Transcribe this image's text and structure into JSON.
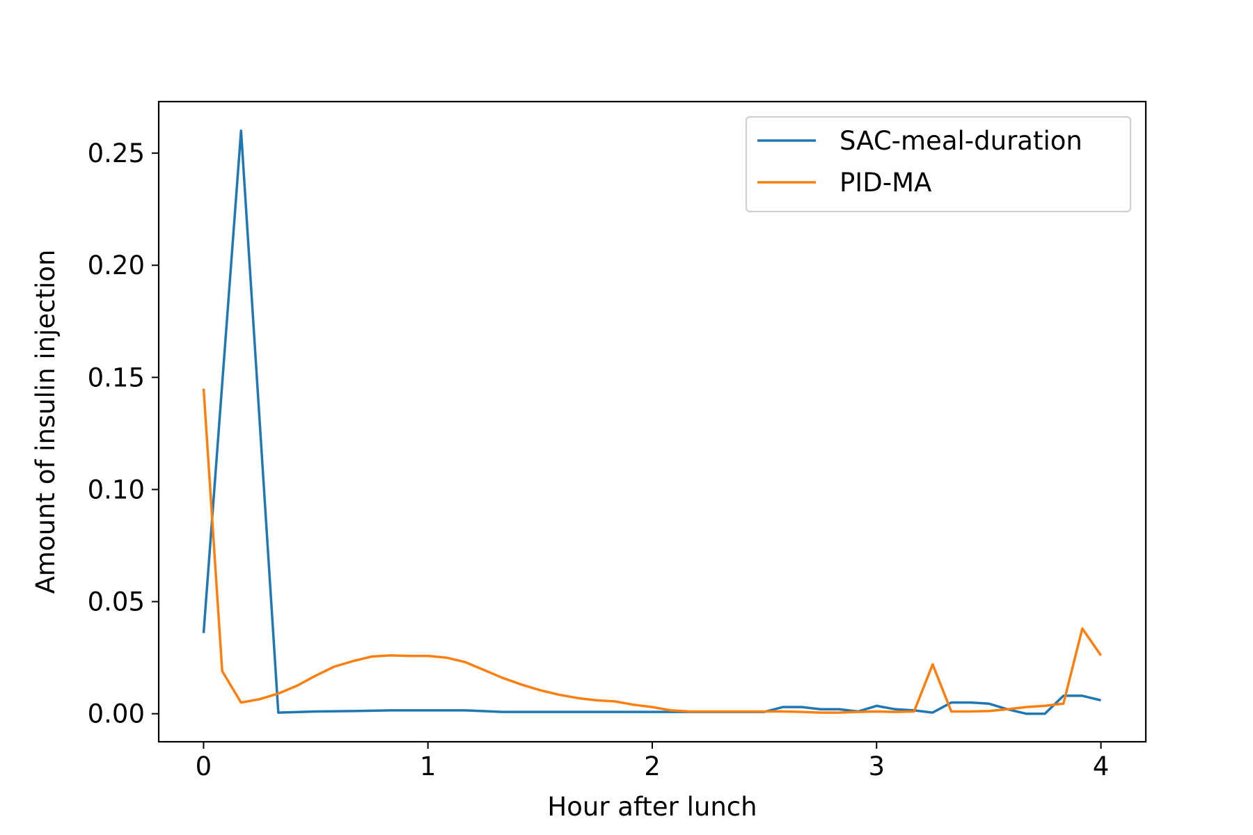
{
  "chart_data": {
    "type": "line",
    "title": "",
    "xlabel": "Hour after lunch",
    "ylabel": "Amount of insulin injection",
    "xlim": [
      -0.2,
      4.2
    ],
    "ylim": [
      -0.0125,
      0.273
    ],
    "xticks": [
      0,
      1,
      2,
      3,
      4
    ],
    "xtick_labels": [
      "0",
      "1",
      "2",
      "3",
      "4"
    ],
    "yticks": [
      0.0,
      0.05,
      0.1,
      0.15,
      0.2,
      0.25
    ],
    "ytick_labels": [
      "0.00",
      "0.05",
      "0.10",
      "0.15",
      "0.20",
      "0.25"
    ],
    "grid": false,
    "legend_position": "upper right",
    "series": [
      {
        "name": "SAC-meal-duration",
        "color": "#1f77b4",
        "x": [
          0,
          0.167,
          0.333,
          0.5,
          0.667,
          0.833,
          1.0,
          1.167,
          1.333,
          1.5,
          1.667,
          1.833,
          2.0,
          2.167,
          2.333,
          2.5,
          2.583,
          2.667,
          2.75,
          2.833,
          2.917,
          3.0,
          3.083,
          3.167,
          3.25,
          3.333,
          3.417,
          3.5,
          3.583,
          3.667,
          3.75,
          3.833,
          3.917,
          4.0
        ],
        "y": [
          0.036,
          0.26,
          0.0005,
          0.001,
          0.0012,
          0.0015,
          0.0015,
          0.0015,
          0.0008,
          0.0008,
          0.0008,
          0.0008,
          0.0008,
          0.0008,
          0.0008,
          0.0008,
          0.003,
          0.003,
          0.002,
          0.002,
          0.001,
          0.0035,
          0.002,
          0.0015,
          0.0005,
          0.005,
          0.005,
          0.0045,
          0.002,
          0.0,
          0.0,
          0.008,
          0.008,
          0.006
        ]
      },
      {
        "name": "PID-MA",
        "color": "#ff7f0e",
        "x": [
          0,
          0.083,
          0.167,
          0.25,
          0.333,
          0.417,
          0.5,
          0.583,
          0.667,
          0.75,
          0.833,
          0.917,
          1.0,
          1.083,
          1.167,
          1.25,
          1.333,
          1.417,
          1.5,
          1.583,
          1.667,
          1.75,
          1.833,
          1.917,
          2.0,
          2.083,
          2.167,
          2.25,
          2.333,
          2.417,
          2.5,
          2.583,
          2.667,
          2.75,
          2.833,
          2.917,
          3.0,
          3.083,
          3.167,
          3.25,
          3.333,
          3.417,
          3.5,
          3.583,
          3.667,
          3.75,
          3.833,
          3.917,
          4.0
        ],
        "y": [
          0.145,
          0.019,
          0.005,
          0.0065,
          0.009,
          0.0125,
          0.017,
          0.021,
          0.0235,
          0.0255,
          0.026,
          0.0258,
          0.0258,
          0.025,
          0.023,
          0.0195,
          0.016,
          0.013,
          0.0105,
          0.0085,
          0.007,
          0.006,
          0.0055,
          0.004,
          0.003,
          0.0015,
          0.001,
          0.001,
          0.001,
          0.001,
          0.001,
          0.001,
          0.0008,
          0.0005,
          0.0005,
          0.0008,
          0.001,
          0.0008,
          0.001,
          0.022,
          0.001,
          0.001,
          0.0012,
          0.002,
          0.003,
          0.0035,
          0.0045,
          0.038,
          0.026
        ]
      }
    ]
  }
}
